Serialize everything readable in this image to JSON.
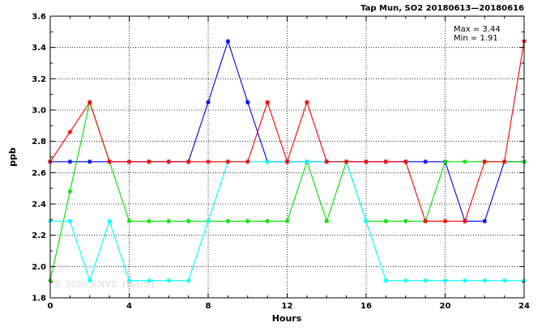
{
  "chart_data": {
    "type": "line",
    "title": "Tap Mun, SO2 20180613—20180616",
    "xlabel": "Hours",
    "ylabel": "ppb",
    "xlim": [
      0,
      24
    ],
    "ylim": [
      1.8,
      3.6
    ],
    "xticks": [
      0,
      4,
      8,
      12,
      16,
      20,
      24
    ],
    "yticks": [
      1.8,
      2.0,
      2.2,
      2.4,
      2.6,
      2.8,
      3.0,
      3.2,
      3.4,
      3.6
    ],
    "grid": true,
    "max_label": "Max = 3.44",
    "min_label": "Min = 1.91",
    "watermark": "© 2020  ENVF, HKUST",
    "x": [
      0,
      1,
      2,
      3,
      4,
      5,
      6,
      7,
      8,
      9,
      10,
      11,
      12,
      13,
      14,
      15,
      16,
      17,
      18,
      19,
      20,
      21,
      22,
      23,
      24
    ],
    "series": [
      {
        "color": "#0000ff",
        "values": [
          2.67,
          2.67,
          2.67,
          2.67,
          2.67,
          2.67,
          2.67,
          2.67,
          3.05,
          3.44,
          3.05,
          2.67,
          2.67,
          2.67,
          2.67,
          2.67,
          2.67,
          2.67,
          2.67,
          2.67,
          2.67,
          2.29,
          2.29,
          2.67,
          2.67
        ]
      },
      {
        "color": "#00e000",
        "values": [
          1.91,
          2.48,
          3.05,
          2.67,
          2.29,
          2.29,
          2.29,
          2.29,
          2.29,
          2.29,
          2.29,
          2.29,
          2.29,
          2.67,
          2.29,
          2.67,
          2.29,
          2.29,
          2.29,
          2.29,
          2.67,
          2.67,
          2.67,
          2.67,
          2.67
        ]
      },
      {
        "color": "#00ffff",
        "values": [
          2.29,
          2.29,
          1.91,
          2.29,
          1.91,
          1.91,
          1.91,
          1.91,
          2.29,
          2.67,
          2.67,
          2.67,
          2.67,
          2.67,
          2.67,
          2.67,
          2.29,
          1.91,
          1.91,
          1.91,
          1.91,
          1.91,
          1.91,
          1.91,
          1.91
        ]
      },
      {
        "color": "#ff0000",
        "values": [
          2.67,
          2.86,
          3.05,
          2.67,
          2.67,
          2.67,
          2.67,
          2.67,
          2.67,
          2.67,
          2.67,
          3.05,
          2.67,
          3.05,
          2.67,
          2.67,
          2.67,
          2.67,
          2.67,
          2.29,
          2.29,
          2.29,
          2.67,
          2.67,
          3.44
        ]
      }
    ]
  }
}
